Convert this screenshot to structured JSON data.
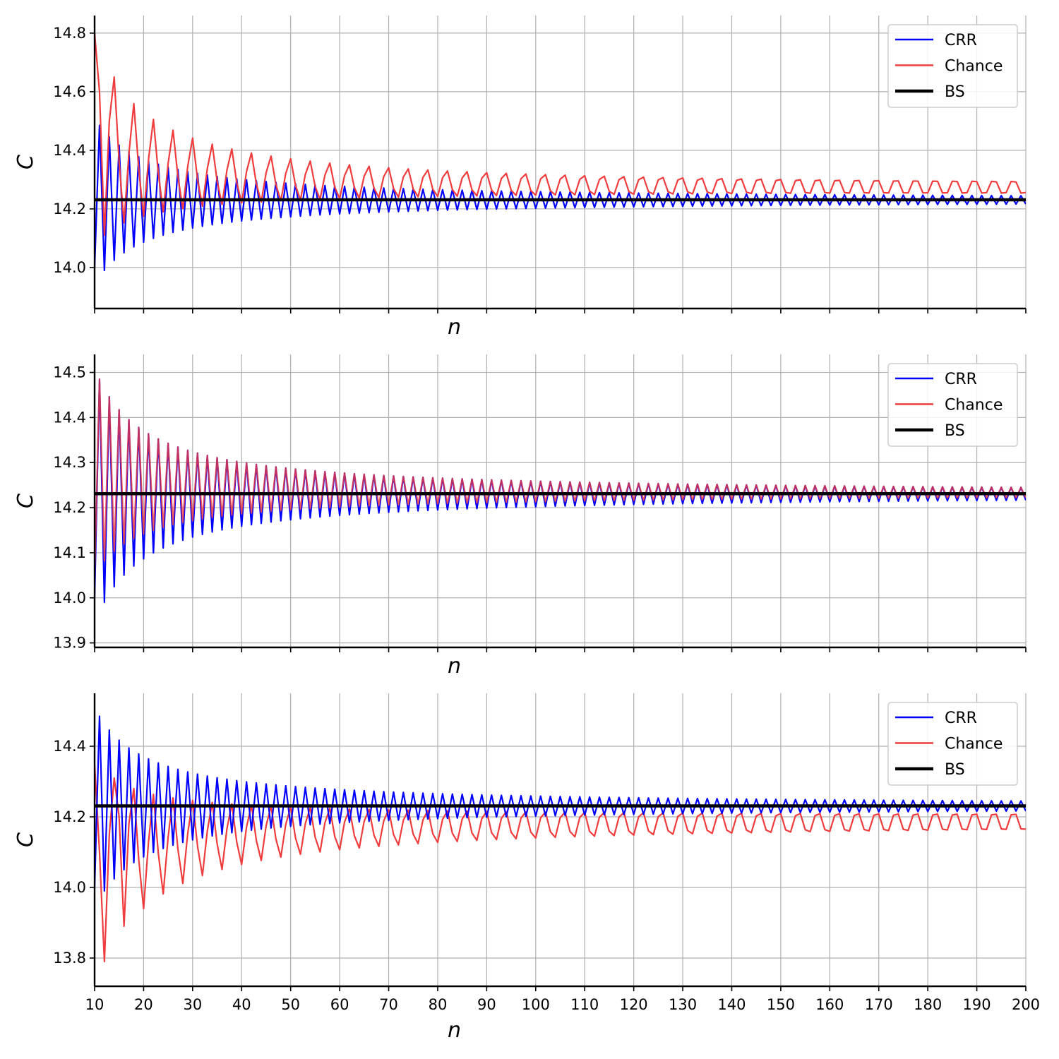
{
  "chart_data": [
    {
      "type": "line",
      "xlabel": "n",
      "ylabel": "C",
      "xlim": [
        10,
        200
      ],
      "ylim": [
        13.86,
        14.86
      ],
      "yticks": [
        "14.0",
        "14.2",
        "14.4",
        "14.6",
        "14.8"
      ],
      "show_xtick_labels": false,
      "grid": true,
      "legend": "top-right",
      "colors": {
        "CRR": "#0000ff",
        "Chance": "#f03c3c",
        "BS": "#000000"
      },
      "series": [
        {
          "name": "CRR",
          "values": {
            "kind": "oscillating",
            "start_n": 10,
            "end_n": 200,
            "target": 14.231,
            "amp_even": 0.262,
            "amp_odd": -0.245,
            "n_first": 11,
            "n_first_value": 14.485,
            "n_second_value": 13.99,
            "decay": "1/n"
          }
        },
        {
          "name": "Chance",
          "values": {
            "kind": "oscillating",
            "start_n": 10,
            "end_n": 200,
            "target": 14.265,
            "amp_even": 0.47,
            "amp_odd": -0.02,
            "first_points": [
              [
                10,
                14.8
              ],
              [
                11,
                14.6
              ],
              [
                12,
                14.11
              ],
              [
                13,
                14.5
              ],
              [
                14,
                14.65
              ]
            ],
            "end_range": [
              14.27,
              14.29
            ]
          }
        },
        {
          "name": "BS",
          "values": {
            "kind": "constant",
            "value": 14.231
          }
        }
      ]
    },
    {
      "type": "line",
      "xlabel": "n",
      "ylabel": "C",
      "xlim": [
        10,
        200
      ],
      "ylim": [
        13.89,
        14.54
      ],
      "yticks": [
        "13.9",
        "14.0",
        "14.1",
        "14.2",
        "14.3",
        "14.4",
        "14.5"
      ],
      "show_xtick_labels": false,
      "grid": true,
      "legend": "top-right",
      "colors": {
        "CRR": "#0000ff",
        "Chance": "#f03c3c",
        "BS": "#000000"
      },
      "series": [
        {
          "name": "CRR",
          "values": {
            "kind": "oscillating",
            "start_n": 10,
            "end_n": 200,
            "target": 14.231,
            "n_first": 11,
            "n_first_value": 14.485,
            "n_second_value": 13.99,
            "end_range": [
              14.215,
              14.245
            ]
          }
        },
        {
          "name": "Chance",
          "values": {
            "kind": "oscillating",
            "start_n": 10,
            "end_n": 200,
            "target": 14.231,
            "n_first": 11,
            "n_first_value": 14.485,
            "n_second_value": 14.04,
            "end_range": [
              14.225,
              14.245
            ]
          }
        },
        {
          "name": "BS",
          "values": {
            "kind": "constant",
            "value": 14.231
          }
        }
      ]
    },
    {
      "type": "line",
      "xlabel": "n",
      "ylabel": "C",
      "xlim": [
        10,
        200
      ],
      "ylim": [
        13.72,
        14.55
      ],
      "yticks": [
        "13.8",
        "14.0",
        "14.2",
        "14.4"
      ],
      "xticks": [
        "10",
        "20",
        "30",
        "40",
        "50",
        "60",
        "70",
        "80",
        "90",
        "100",
        "110",
        "120",
        "130",
        "140",
        "150",
        "160",
        "170",
        "180",
        "190",
        "200"
      ],
      "show_xtick_labels": true,
      "grid": true,
      "legend": "top-right",
      "colors": {
        "CRR": "#0000ff",
        "Chance": "#f03c3c",
        "BS": "#000000"
      },
      "series": [
        {
          "name": "CRR",
          "values": {
            "kind": "oscillating",
            "start_n": 10,
            "end_n": 200,
            "target": 14.231,
            "n_first": 11,
            "n_first_value": 14.485,
            "n_second_value": 13.99,
            "end_range": [
              14.215,
              14.245
            ]
          }
        },
        {
          "name": "Chance",
          "values": {
            "kind": "oscillating",
            "start_n": 10,
            "end_n": 200,
            "target": 14.19,
            "first_points": [
              [
                10,
                14.35
              ],
              [
                11,
                14.1
              ],
              [
                12,
                13.79
              ],
              [
                13,
                14.15
              ],
              [
                14,
                14.31
              ],
              [
                15,
                14.2
              ],
              [
                16,
                13.89
              ],
              [
                17,
                14.18
              ],
              [
                18,
                14.28
              ]
            ],
            "end_range": [
              14.18,
              14.205
            ]
          }
        },
        {
          "name": "BS",
          "values": {
            "kind": "constant",
            "value": 14.231
          }
        }
      ]
    }
  ]
}
